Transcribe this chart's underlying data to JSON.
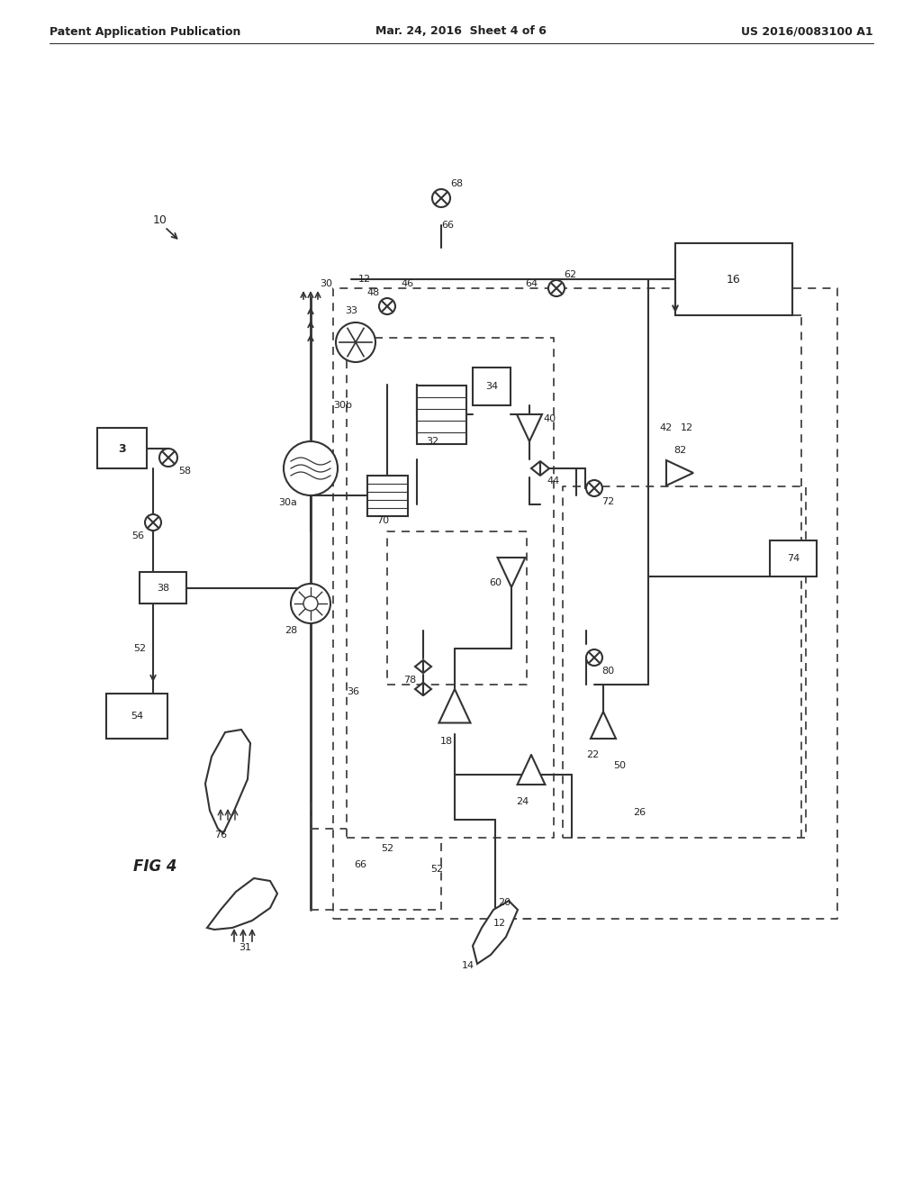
{
  "title_left": "Patent Application Publication",
  "title_mid": "Mar. 24, 2016  Sheet 4 of 6",
  "title_right": "US 2016/0083100 A1",
  "fig_label": "FIG 4",
  "background": "#ffffff",
  "line_color": "#333333",
  "dashed_color": "#444444",
  "label_color": "#222222"
}
